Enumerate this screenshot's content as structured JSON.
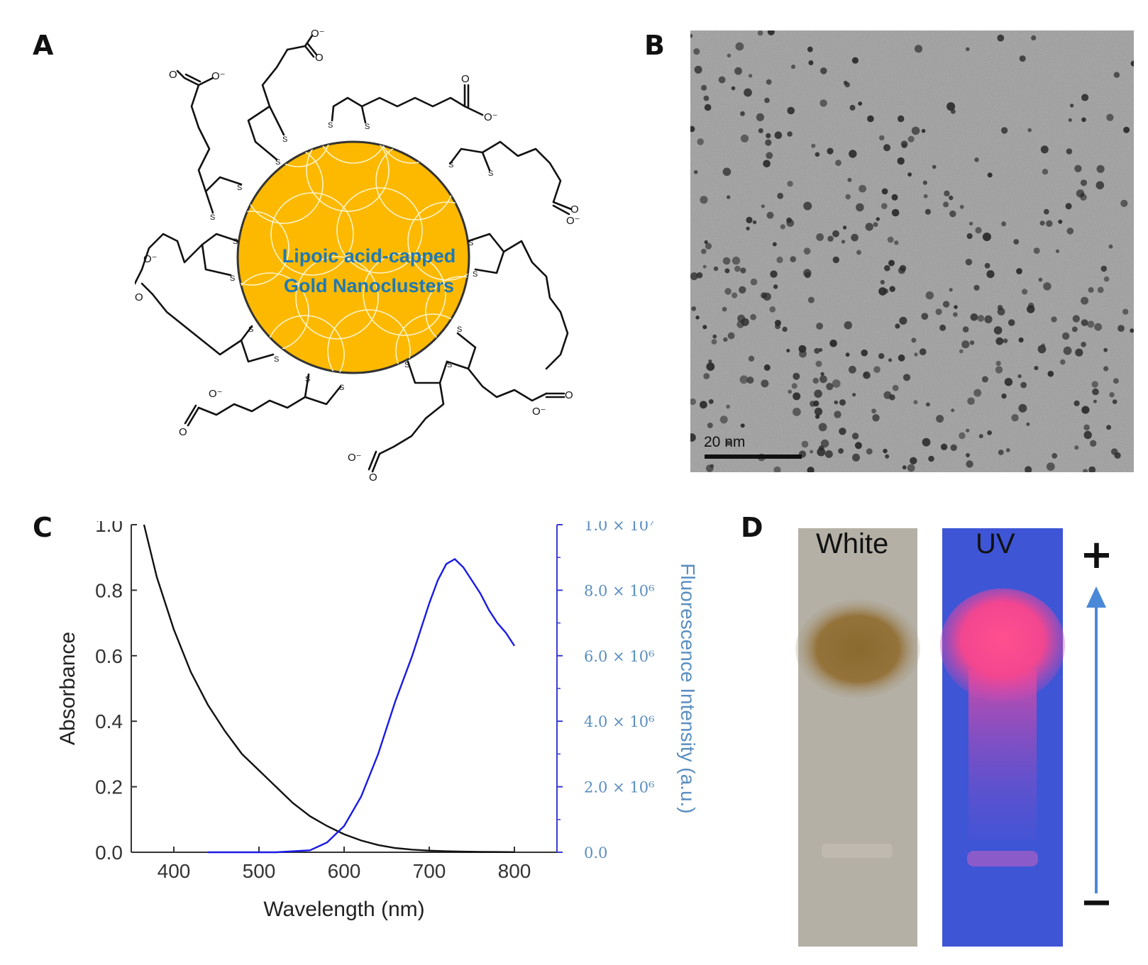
{
  "panels": {
    "a": {
      "label": "A"
    },
    "b": {
      "label": "B"
    },
    "c": {
      "label": "C"
    },
    "d": {
      "label": "D"
    }
  },
  "panel_a": {
    "title_line1": "Lipoic acid-capped",
    "title_line2": "Gold Nanoclusters",
    "colors": {
      "core": "#fcb900",
      "outline": "#333333",
      "title": "#1f78b4"
    },
    "atoms": {
      "sulfur": "S",
      "oxygen": "O",
      "carboxylate": "O⁻"
    }
  },
  "panel_b": {
    "scale_bar_label": "20 nm"
  },
  "chart_data": {
    "type": "line",
    "xlabel": "Wavelength (nm)",
    "ylabel": "Absorbance",
    "y2label": "Fluorescence Intensity (a.u.)",
    "xlim": [
      350,
      850
    ],
    "ylim": [
      0,
      1.0
    ],
    "y2lim": [
      0,
      10000000
    ],
    "x_ticks": [
      "400",
      "500",
      "600",
      "700",
      "800"
    ],
    "y_ticks": [
      "0.0",
      "0.2",
      "0.4",
      "0.6",
      "0.8",
      "1.0"
    ],
    "y2_ticks": [
      "0.0",
      "2.0 × 10⁶",
      "4.0 × 10⁶",
      "6.0 × 10⁶",
      "8.0 × 10⁶",
      "1.0 × 10⁷"
    ],
    "series": [
      {
        "name": "Absorbance",
        "axis": "left",
        "color": "#111111",
        "x": [
          365,
          380,
          400,
          420,
          440,
          460,
          480,
          500,
          520,
          540,
          560,
          580,
          600,
          620,
          640,
          660,
          680,
          700,
          720,
          740,
          760,
          780,
          800
        ],
        "y": [
          1.0,
          0.84,
          0.68,
          0.55,
          0.45,
          0.37,
          0.3,
          0.25,
          0.2,
          0.15,
          0.11,
          0.08,
          0.055,
          0.036,
          0.022,
          0.013,
          0.008,
          0.005,
          0.003,
          0.002,
          0.001,
          0.0008,
          0.0005
        ]
      },
      {
        "name": "Fluorescence",
        "axis": "right",
        "color": "#1a1ae6",
        "x": [
          440,
          520,
          560,
          580,
          600,
          620,
          640,
          660,
          680,
          700,
          710,
          720,
          730,
          740,
          750,
          760,
          770,
          780,
          790,
          800
        ],
        "y": [
          0,
          0,
          60000,
          300000,
          800000,
          1700000,
          3000000,
          4600000,
          6000000,
          7600000,
          8300000,
          8800000,
          8950000,
          8700000,
          8300000,
          7900000,
          7400000,
          7000000,
          6700000,
          6300000
        ]
      }
    ]
  },
  "panel_d": {
    "white_label": "White",
    "uv_label": "UV",
    "plus_sign": "+",
    "minus_sign": "−",
    "colors": {
      "white_bg": "#b4b0a6",
      "uv_bg": "#3e55d6",
      "arrow": "#4a88d8"
    }
  }
}
